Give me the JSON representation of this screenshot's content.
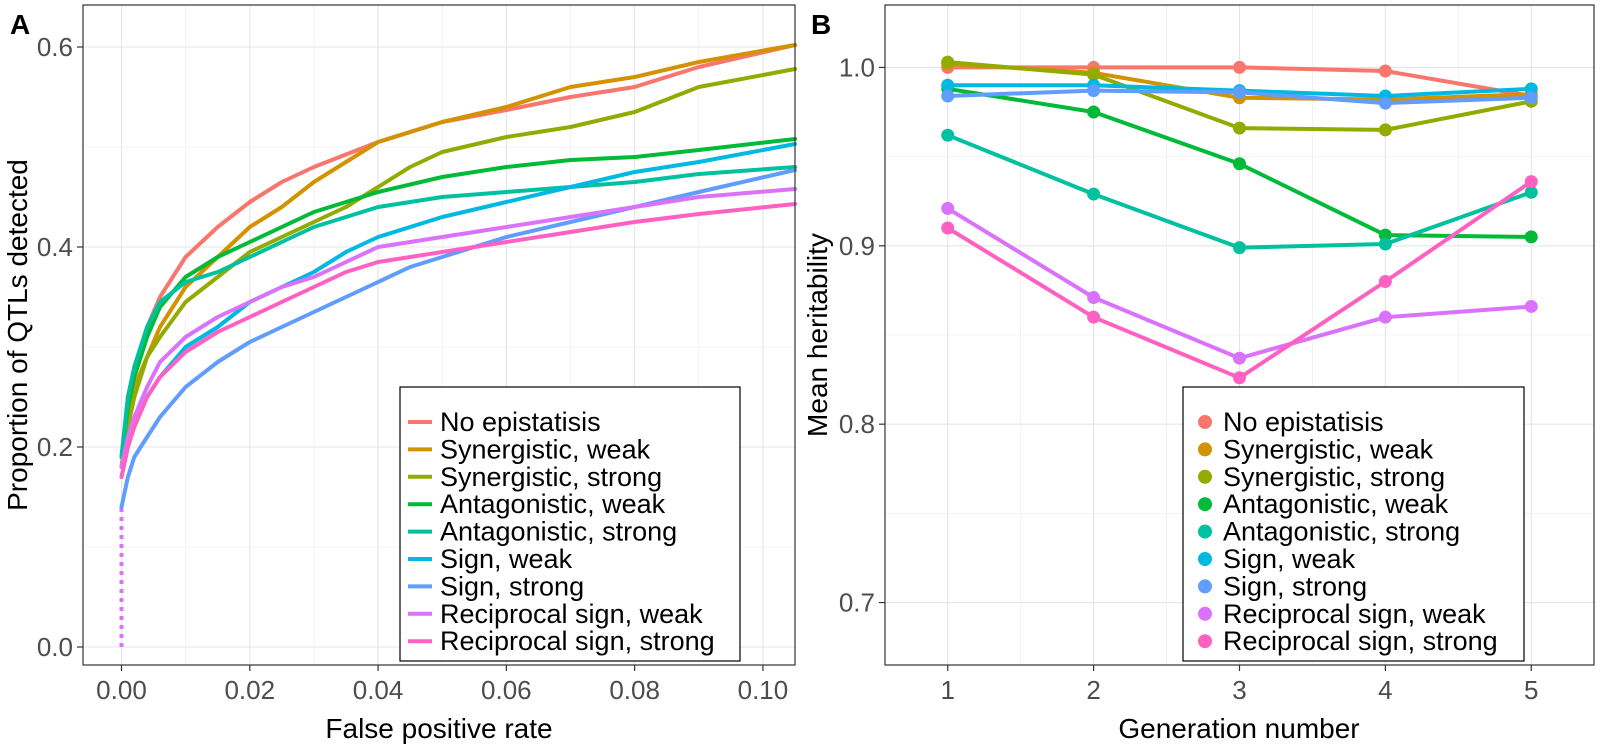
{
  "panels": [
    {
      "tag": "A",
      "xlabel": "False positive rate",
      "ylabel": "Proportion of QTLs detected"
    },
    {
      "tag": "B",
      "xlabel": "Generation number",
      "ylabel": "Mean heritability"
    }
  ],
  "chart_data": [
    {
      "type": "line",
      "tag": "A",
      "xlabel": "False positive rate",
      "ylabel": "Proportion of QTLs detected",
      "xlim": [
        -0.006,
        0.105
      ],
      "ylim": [
        -0.018,
        0.642
      ],
      "xticks": [
        0.0,
        0.02,
        0.04,
        0.06,
        0.08,
        0.1
      ],
      "xtick_labels": [
        "0.00",
        "0.02",
        "0.04",
        "0.06",
        "0.08",
        "0.10"
      ],
      "yticks": [
        0.0,
        0.2,
        0.4,
        0.6
      ],
      "ytick_labels": [
        "0.0",
        "0.2",
        "0.4",
        "0.6"
      ],
      "grid": true,
      "legend_position": "bottom-right",
      "series": [
        {
          "name": "No epistatisis",
          "color": "#F8766D",
          "x": [
            0,
            0.001,
            0.002,
            0.004,
            0.006,
            0.01,
            0.015,
            0.02,
            0.025,
            0.03,
            0.04,
            0.05,
            0.06,
            0.07,
            0.08,
            0.09,
            0.105
          ],
          "y": [
            0.19,
            0.25,
            0.28,
            0.32,
            0.35,
            0.39,
            0.42,
            0.445,
            0.465,
            0.48,
            0.505,
            0.525,
            0.537,
            0.55,
            0.56,
            0.58,
            0.602
          ]
        },
        {
          "name": "Synergistic, weak",
          "color": "#D39200",
          "x": [
            0,
            0.001,
            0.002,
            0.004,
            0.006,
            0.01,
            0.015,
            0.02,
            0.025,
            0.03,
            0.035,
            0.04,
            0.05,
            0.06,
            0.07,
            0.08,
            0.09,
            0.105
          ],
          "y": [
            0.18,
            0.23,
            0.26,
            0.29,
            0.32,
            0.36,
            0.39,
            0.42,
            0.44,
            0.465,
            0.485,
            0.505,
            0.525,
            0.54,
            0.56,
            0.57,
            0.585,
            0.602
          ]
        },
        {
          "name": "Synergistic, strong",
          "color": "#93AA00",
          "x": [
            0,
            0.001,
            0.002,
            0.004,
            0.006,
            0.01,
            0.015,
            0.02,
            0.025,
            0.03,
            0.035,
            0.04,
            0.045,
            0.05,
            0.06,
            0.07,
            0.08,
            0.09,
            0.105
          ],
          "y": [
            0.18,
            0.22,
            0.25,
            0.29,
            0.31,
            0.345,
            0.37,
            0.395,
            0.41,
            0.425,
            0.44,
            0.46,
            0.48,
            0.495,
            0.51,
            0.52,
            0.535,
            0.56,
            0.578
          ]
        },
        {
          "name": "Antagonistic, weak",
          "color": "#00BA38",
          "x": [
            0,
            0.001,
            0.002,
            0.004,
            0.006,
            0.01,
            0.015,
            0.02,
            0.025,
            0.03,
            0.04,
            0.05,
            0.06,
            0.07,
            0.08,
            0.09,
            0.105
          ],
          "y": [
            0.19,
            0.24,
            0.27,
            0.31,
            0.34,
            0.37,
            0.39,
            0.405,
            0.42,
            0.435,
            0.455,
            0.47,
            0.48,
            0.487,
            0.49,
            0.497,
            0.508
          ]
        },
        {
          "name": "Antagonistic, strong",
          "color": "#00C19F",
          "x": [
            0,
            0.001,
            0.002,
            0.004,
            0.006,
            0.01,
            0.015,
            0.02,
            0.025,
            0.03,
            0.035,
            0.04,
            0.05,
            0.06,
            0.07,
            0.08,
            0.09,
            0.105
          ],
          "y": [
            0.19,
            0.25,
            0.28,
            0.32,
            0.345,
            0.365,
            0.375,
            0.39,
            0.405,
            0.42,
            0.43,
            0.44,
            0.45,
            0.455,
            0.46,
            0.465,
            0.473,
            0.48
          ]
        },
        {
          "name": "Sign, weak",
          "color": "#00B9E3",
          "x": [
            0,
            0.001,
            0.002,
            0.004,
            0.006,
            0.01,
            0.015,
            0.02,
            0.025,
            0.03,
            0.035,
            0.04,
            0.05,
            0.06,
            0.07,
            0.08,
            0.09,
            0.105
          ],
          "y": [
            0.17,
            0.2,
            0.22,
            0.25,
            0.27,
            0.3,
            0.32,
            0.345,
            0.36,
            0.375,
            0.395,
            0.41,
            0.43,
            0.445,
            0.46,
            0.475,
            0.485,
            0.503
          ]
        },
        {
          "name": "Sign, strong",
          "color": "#619CFF",
          "x": [
            0,
            0.001,
            0.002,
            0.004,
            0.006,
            0.01,
            0.015,
            0.02,
            0.025,
            0.03,
            0.035,
            0.04,
            0.045,
            0.05,
            0.06,
            0.07,
            0.08,
            0.09,
            0.105
          ],
          "y": [
            0.14,
            0.17,
            0.19,
            0.21,
            0.23,
            0.26,
            0.285,
            0.305,
            0.32,
            0.335,
            0.35,
            0.365,
            0.38,
            0.39,
            0.41,
            0.425,
            0.44,
            0.455,
            0.477
          ]
        },
        {
          "name": "Reciprocal sign, weak",
          "color": "#DB72FB",
          "x": [
            0,
            0.001,
            0.002,
            0.004,
            0.006,
            0.01,
            0.015,
            0.02,
            0.025,
            0.03,
            0.035,
            0.04,
            0.05,
            0.06,
            0.07,
            0.08,
            0.09,
            0.105
          ],
          "y": [
            0.18,
            0.21,
            0.23,
            0.26,
            0.285,
            0.31,
            0.33,
            0.345,
            0.36,
            0.37,
            0.385,
            0.4,
            0.41,
            0.42,
            0.43,
            0.44,
            0.45,
            0.458
          ]
        },
        {
          "name": "Reciprocal sign, strong",
          "color": "#FF61C3",
          "x": [
            0,
            0.001,
            0.002,
            0.004,
            0.006,
            0.01,
            0.015,
            0.02,
            0.025,
            0.03,
            0.035,
            0.04,
            0.05,
            0.06,
            0.07,
            0.08,
            0.09,
            0.105
          ],
          "y": [
            0.17,
            0.2,
            0.22,
            0.25,
            0.27,
            0.295,
            0.315,
            0.33,
            0.345,
            0.36,
            0.375,
            0.385,
            0.395,
            0.405,
            0.415,
            0.425,
            0.433,
            0.443
          ]
        }
      ],
      "dotted_segment": {
        "color": "#DB72FB",
        "x": [
          0,
          0
        ],
        "y": [
          0.0,
          0.14
        ]
      }
    },
    {
      "type": "line",
      "tag": "B",
      "xlabel": "Generation number",
      "ylabel": "Mean heritability",
      "xlim": [
        0.57,
        5.43
      ],
      "ylim": [
        0.665,
        1.035
      ],
      "xticks": [
        1,
        2,
        3,
        4,
        5
      ],
      "xtick_labels": [
        "1",
        "2",
        "3",
        "4",
        "5"
      ],
      "yticks": [
        0.7,
        0.8,
        0.9,
        1.0
      ],
      "ytick_labels": [
        "0.7",
        "0.8",
        "0.9",
        "1.0"
      ],
      "grid": true,
      "markers": true,
      "legend_position": "bottom-right",
      "x": [
        1,
        2,
        3,
        4,
        5
      ],
      "series": [
        {
          "name": "No epistatisis",
          "color": "#F8766D",
          "values": [
            1.0,
            1.0,
            1.0,
            0.998,
            0.984
          ]
        },
        {
          "name": "Synergistic, weak",
          "color": "#D39200",
          "values": [
            1.002,
            0.997,
            0.983,
            0.982,
            0.985
          ]
        },
        {
          "name": "Synergistic, strong",
          "color": "#93AA00",
          "values": [
            1.003,
            0.996,
            0.966,
            0.965,
            0.981
          ]
        },
        {
          "name": "Antagonistic, weak",
          "color": "#00BA38",
          "values": [
            0.988,
            0.975,
            0.946,
            0.906,
            0.905
          ]
        },
        {
          "name": "Antagonistic, strong",
          "color": "#00C19F",
          "values": [
            0.962,
            0.929,
            0.899,
            0.901,
            0.93
          ]
        },
        {
          "name": "Sign, weak",
          "color": "#00B9E3",
          "values": [
            0.99,
            0.99,
            0.987,
            0.984,
            0.988
          ]
        },
        {
          "name": "Sign, strong",
          "color": "#619CFF",
          "values": [
            0.984,
            0.987,
            0.986,
            0.98,
            0.983
          ]
        },
        {
          "name": "Reciprocal sign, weak",
          "color": "#DB72FB",
          "values": [
            0.921,
            0.871,
            0.837,
            0.86,
            0.866
          ]
        },
        {
          "name": "Reciprocal sign, strong",
          "color": "#FF61C3",
          "values": [
            0.91,
            0.86,
            0.826,
            0.88,
            0.936
          ]
        }
      ]
    }
  ]
}
